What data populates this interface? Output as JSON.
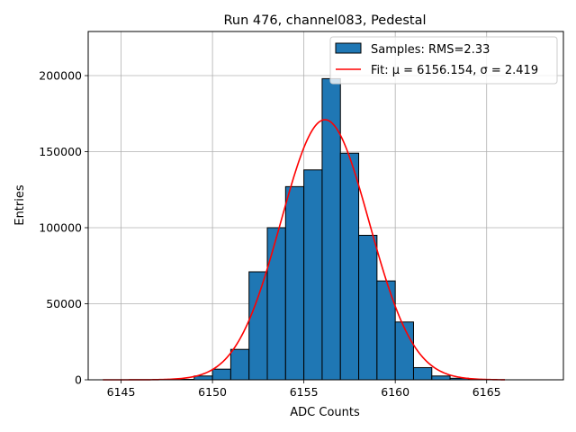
{
  "chart_data": {
    "type": "bar",
    "title": "Run 476, channel083, Pedestal",
    "xlabel": "ADC Counts",
    "ylabel": "Entries",
    "xlim": [
      6143.2,
      6169.2
    ],
    "ylim": [
      0,
      229000
    ],
    "grid": true,
    "legend_placement": "top-right",
    "xticks": [
      6145,
      6150,
      6155,
      6160,
      6165
    ],
    "yticks": [
      0,
      50000,
      100000,
      150000,
      200000
    ],
    "bin_width": 1,
    "bins": [
      {
        "left": 6148,
        "value": 300
      },
      {
        "left": 6149,
        "value": 2500
      },
      {
        "left": 6150,
        "value": 7000
      },
      {
        "left": 6151,
        "value": 20000
      },
      {
        "left": 6152,
        "value": 71000
      },
      {
        "left": 6153,
        "value": 100000
      },
      {
        "left": 6154,
        "value": 127000
      },
      {
        "left": 6155,
        "value": 138000
      },
      {
        "left": 6156,
        "value": 198000
      },
      {
        "left": 6157,
        "value": 149000
      },
      {
        "left": 6158,
        "value": 95000
      },
      {
        "left": 6159,
        "value": 65000
      },
      {
        "left": 6160,
        "value": 38000
      },
      {
        "left": 6161,
        "value": 8000
      },
      {
        "left": 6162,
        "value": 2500
      },
      {
        "left": 6163,
        "value": 1000
      },
      {
        "left": 6164,
        "value": 300
      }
    ],
    "fit": {
      "mu": 6156.154,
      "sigma": 2.419,
      "amplitude": 171000,
      "x_range": [
        6144,
        6166
      ]
    },
    "series": [
      {
        "name": "Samples: RMS=2.33",
        "kind": "histogram",
        "color": "#1f77b4"
      },
      {
        "name": "Fit: μ = 6156.154, σ = 2.419",
        "kind": "line",
        "color": "#ff0000"
      }
    ]
  }
}
